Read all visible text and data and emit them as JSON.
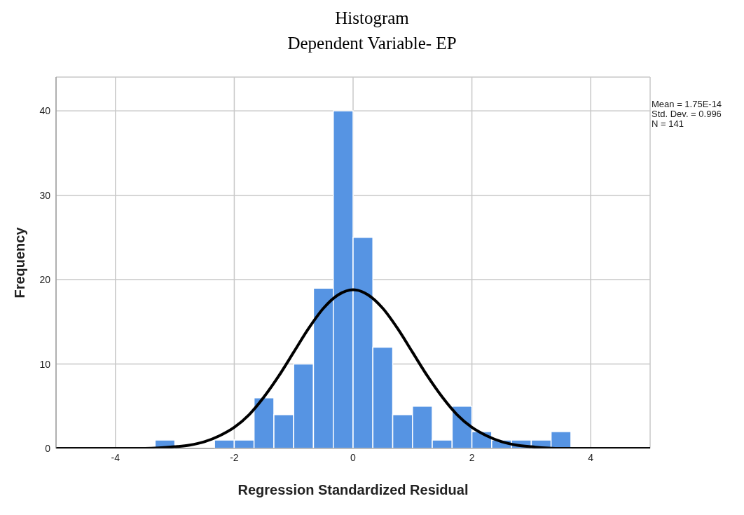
{
  "chart_data": {
    "type": "histogram",
    "title": "Histogram",
    "subtitle": "Dependent Variable- EP",
    "xlabel": "Regression Standardized Residual",
    "ylabel": "Frequency",
    "bins": [
      -3.333,
      -3,
      -2.667,
      -2.333,
      -2,
      -1.667,
      -1.333,
      -1,
      -0.667,
      -0.333,
      0,
      0.333,
      0.667,
      1,
      1.333,
      1.667,
      2,
      2.333,
      2.667,
      3,
      3.333,
      3.667
    ],
    "values": [
      1,
      0,
      0,
      1,
      1,
      6,
      4,
      10,
      19,
      40,
      25,
      12,
      4,
      5,
      1,
      5,
      2,
      1,
      1,
      1,
      2
    ],
    "color": "#5694e3",
    "series": [
      {
        "type": "line",
        "color": "#000000",
        "x": [
          -5,
          -4,
          -3.5,
          -3,
          -2.75,
          -2.5,
          -2.25,
          -2,
          -1.75,
          -1.5,
          -1.25,
          -1,
          -0.75,
          -0.5,
          -0.25,
          0,
          0.25,
          0.5,
          0.75,
          1,
          1.25,
          1.5,
          1.75,
          2,
          2.25,
          2.5,
          2.75,
          3,
          3.5,
          4,
          5
        ],
        "values": [
          0,
          0,
          0,
          0.2,
          0.4,
          0.8,
          1.5,
          2.5,
          4.0,
          6.1,
          8.6,
          11.4,
          14.2,
          16.6,
          18.2,
          18.8,
          18.2,
          16.6,
          14.2,
          11.4,
          8.6,
          6.1,
          4.0,
          2.5,
          1.5,
          0.8,
          0.4,
          0.2,
          0,
          0,
          0
        ]
      }
    ],
    "xlim": [
      -5,
      5
    ],
    "xticks": [
      -4,
      -2,
      0,
      2,
      4
    ],
    "ylim": [
      0,
      44
    ],
    "yticks": [
      0,
      10,
      20,
      30,
      40
    ],
    "grid": true,
    "annotations": [
      "Mean = 1.75E-14",
      "Std. Dev. = 0.996",
      "N = 141"
    ]
  }
}
